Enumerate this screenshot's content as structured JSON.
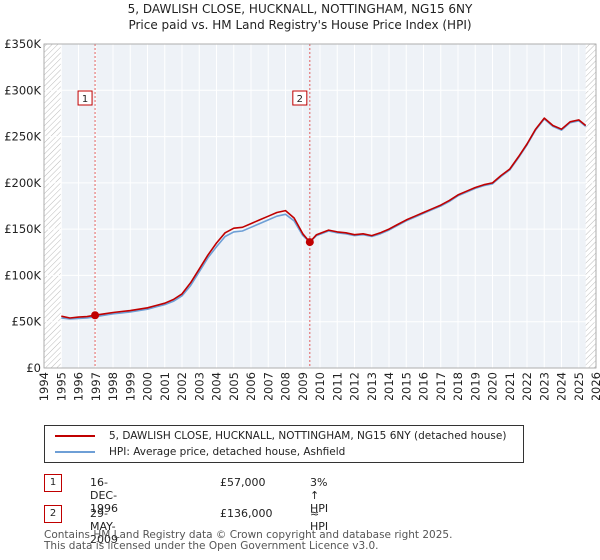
{
  "chart_data": {
    "type": "line",
    "title": "5, DAWLISH CLOSE, HUCKNALL, NOTTINGHAM, NG15 6NY",
    "subtitle": "Price paid vs. HM Land Registry's House Price Index (HPI)",
    "ylim": [
      0,
      350000
    ],
    "xlim": [
      1994,
      2026
    ],
    "yticks": [
      0,
      50000,
      100000,
      150000,
      200000,
      250000,
      300000,
      350000
    ],
    "ytick_labels": [
      "£0",
      "£50K",
      "£100K",
      "£150K",
      "£200K",
      "£250K",
      "£300K",
      "£350K"
    ],
    "xticks": [
      1994,
      1995,
      1996,
      1997,
      1998,
      1999,
      2000,
      2001,
      2002,
      2003,
      2004,
      2005,
      2006,
      2007,
      2008,
      2009,
      2010,
      2011,
      2012,
      2013,
      2014,
      2015,
      2016,
      2017,
      2018,
      2019,
      2020,
      2021,
      2022,
      2023,
      2024,
      2025,
      2026
    ],
    "xtick_labels": [
      "1994",
      "1995",
      "1996",
      "1997",
      "1998",
      "1999",
      "2000",
      "2001",
      "2002",
      "2003",
      "2004",
      "2005",
      "2006",
      "2007",
      "2008",
      "2009",
      "2010",
      "2011",
      "2012",
      "2013",
      "2014",
      "2015",
      "2016",
      "2017",
      "2018",
      "2019",
      "2020",
      "2021",
      "2022",
      "2023",
      "2024",
      "2025",
      "2026"
    ],
    "grid": true,
    "data_start": 1995.0,
    "data_end": 2025.4,
    "series": [
      {
        "name": "5, DAWLISH CLOSE, HUCKNALL, NOTTINGHAM, NG15 6NY (detached house)",
        "color": "#c00000",
        "x": [
          1995.0,
          1995.5,
          1996.0,
          1996.5,
          1996.96,
          1997.5,
          1998.0,
          1998.5,
          1999.0,
          1999.5,
          2000.0,
          2000.5,
          2001.0,
          2001.5,
          2002.0,
          2002.5,
          2003.0,
          2003.5,
          2004.0,
          2004.5,
          2005.0,
          2005.5,
          2006.0,
          2006.5,
          2007.0,
          2007.5,
          2008.0,
          2008.5,
          2009.0,
          2009.41,
          2009.8,
          2010.5,
          2011.0,
          2011.5,
          2012.0,
          2012.5,
          2013.0,
          2013.5,
          2014.0,
          2014.5,
          2015.0,
          2015.5,
          2016.0,
          2016.5,
          2017.0,
          2017.5,
          2018.0,
          2018.5,
          2019.0,
          2019.5,
          2020.0,
          2020.5,
          2021.0,
          2021.5,
          2022.0,
          2022.5,
          2023.0,
          2023.5,
          2024.0,
          2024.5,
          2025.0,
          2025.4
        ],
        "values": [
          56000,
          54000,
          55000,
          55500,
          57000,
          58500,
          60000,
          61000,
          62000,
          63500,
          65000,
          67500,
          70000,
          74000,
          80000,
          92000,
          107000,
          122000,
          135000,
          146000,
          151000,
          152000,
          156000,
          160000,
          164000,
          168000,
          170000,
          162000,
          145000,
          136000,
          144000,
          149000,
          147000,
          146000,
          144000,
          145000,
          143000,
          146000,
          150000,
          155000,
          160000,
          164000,
          168000,
          172000,
          176000,
          181000,
          187000,
          191000,
          195000,
          198000,
          200000,
          208000,
          215000,
          228000,
          242000,
          258000,
          270000,
          262000,
          258000,
          266000,
          268000,
          262000
        ]
      },
      {
        "name": "HPI: Average price, detached house, Ashfield",
        "color": "#6e9fd6",
        "x": [
          1995.0,
          1995.5,
          1996.0,
          1996.5,
          1996.96,
          1997.5,
          1998.0,
          1998.5,
          1999.0,
          1999.5,
          2000.0,
          2000.5,
          2001.0,
          2001.5,
          2002.0,
          2002.5,
          2003.0,
          2003.5,
          2004.0,
          2004.5,
          2005.0,
          2005.5,
          2006.0,
          2006.5,
          2007.0,
          2007.5,
          2008.0,
          2008.5,
          2009.0,
          2009.41,
          2009.8,
          2010.5,
          2011.0,
          2011.5,
          2012.0,
          2012.5,
          2013.0,
          2013.5,
          2014.0,
          2014.5,
          2015.0,
          2015.5,
          2016.0,
          2016.5,
          2017.0,
          2017.5,
          2018.0,
          2018.5,
          2019.0,
          2019.5,
          2020.0,
          2020.5,
          2021.0,
          2021.5,
          2022.0,
          2022.5,
          2023.0,
          2023.5,
          2024.0,
          2024.5,
          2025.0,
          2025.4
        ],
        "values": [
          54000,
          53000,
          53500,
          54000,
          55300,
          57000,
          58500,
          59500,
          60500,
          62000,
          63500,
          66000,
          68500,
          72000,
          78000,
          89000,
          104000,
          119000,
          131000,
          142000,
          147000,
          148000,
          152000,
          156000,
          160000,
          164000,
          166000,
          159000,
          143000,
          136000,
          143000,
          148000,
          146000,
          145000,
          143000,
          144000,
          142000,
          145000,
          149000,
          154000,
          159000,
          163000,
          167000,
          171000,
          175000,
          180000,
          186000,
          190000,
          194000,
          197000,
          199000,
          207000,
          214000,
          227000,
          241000,
          257000,
          269000,
          261000,
          257000,
          265000,
          267000,
          261000
        ]
      }
    ],
    "annotations": [
      {
        "label": "1",
        "x": 1996.96,
        "value": 57000
      },
      {
        "label": "2",
        "x": 2009.41,
        "value": 136000
      }
    ]
  },
  "legend": {
    "items": [
      {
        "label": "5, DAWLISH CLOSE, HUCKNALL, NOTTINGHAM, NG15 6NY (detached house)",
        "color": "#c00000"
      },
      {
        "label": "HPI: Average price, detached house, Ashfield",
        "color": "#6e9fd6"
      }
    ]
  },
  "transactions": [
    {
      "badge": "1",
      "date": "16-DEC-1996",
      "price": "£57,000",
      "hpi": "3% ↑ HPI"
    },
    {
      "badge": "2",
      "date": "29-MAY-2009",
      "price": "£136,000",
      "hpi": "≈ HPI"
    }
  ],
  "footer": {
    "line1": "Contains HM Land Registry data © Crown copyright and database right 2025.",
    "line2": "This data is licensed under the Open Government Licence v3.0."
  }
}
